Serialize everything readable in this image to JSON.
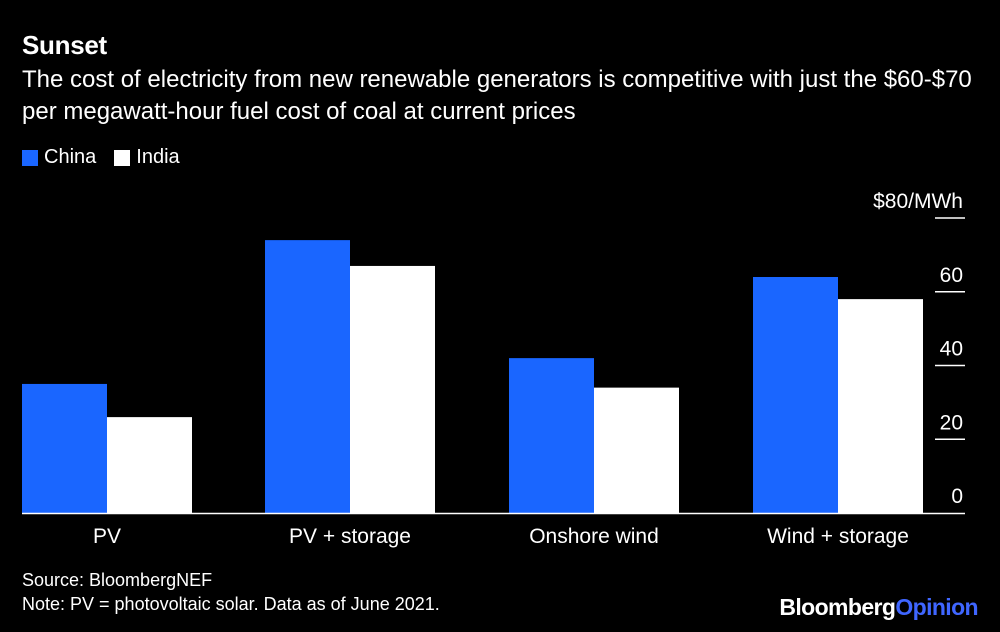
{
  "header": {
    "title": "Sunset",
    "subtitle": "The cost of electricity from new renewable generators is competitive with just the $60-$70 per megawatt-hour fuel cost of coal at current prices"
  },
  "legend": [
    {
      "label": "China",
      "color": "#1a66ff"
    },
    {
      "label": "India",
      "color": "#ffffff"
    }
  ],
  "chart_data": {
    "type": "bar",
    "categories": [
      "PV",
      "PV + storage",
      "Onshore wind",
      "Wind + storage"
    ],
    "series": [
      {
        "name": "China",
        "values": [
          35,
          74,
          42,
          64
        ],
        "color": "#1a66ff"
      },
      {
        "name": "India",
        "values": [
          26,
          67,
          34,
          58
        ],
        "color": "#ffffff"
      }
    ],
    "y_ticks": [
      {
        "value": 80,
        "label": "$80/MWh"
      },
      {
        "value": 60,
        "label": "60"
      },
      {
        "value": 40,
        "label": "40"
      },
      {
        "value": 20,
        "label": "20"
      },
      {
        "value": 0,
        "label": "0"
      }
    ],
    "ylim": [
      0,
      80
    ],
    "y_axis_position": "right",
    "grid": false
  },
  "footer": {
    "source": "Source: BloombergNEF",
    "note": "Note: PV = photovoltaic solar. Data as of June 2021."
  },
  "brand": {
    "part1": "Bloomberg",
    "part2": "Opinion"
  }
}
